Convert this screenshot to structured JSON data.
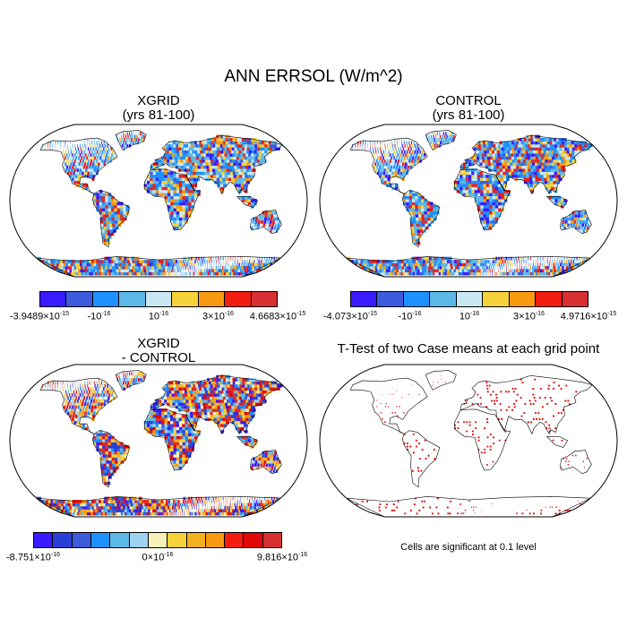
{
  "title": "ANN ERRSOL (W/m^2)",
  "panels": [
    {
      "title": "XGRID",
      "subtitle": "(yrs 81-100)"
    },
    {
      "title": "CONTROL",
      "subtitle": "(yrs 81-100)"
    },
    {
      "title": "XGRID",
      "subtitle": "- CONTROL"
    },
    {
      "title": "T-Test of two Case means at each grid point"
    }
  ],
  "colorbars": [
    {
      "colors": [
        "#3a1aff",
        "#3b5bdc",
        "#1e90ff",
        "#5cb8e8",
        "#c8e8f4",
        "#f5d23a",
        "#f79a10",
        "#f21c10",
        "#d63030"
      ],
      "labels": [
        {
          "mantissa": "-3.9489×10",
          "exp": "-15"
        },
        {
          "mantissa": "-10",
          "exp": "-16"
        },
        {
          "mantissa": "10",
          "exp": "-16"
        },
        {
          "mantissa": "3×10",
          "exp": "-16"
        },
        {
          "mantissa": "4.6683×10",
          "exp": "-15"
        }
      ]
    },
    {
      "colors": [
        "#3a1aff",
        "#3b5bdc",
        "#1e90ff",
        "#5cb8e8",
        "#c8e8f4",
        "#f5d23a",
        "#f79a10",
        "#f21c10",
        "#d63030"
      ],
      "labels": [
        {
          "mantissa": "-4.073×10",
          "exp": "-15"
        },
        {
          "mantissa": "-10",
          "exp": "-16"
        },
        {
          "mantissa": "10",
          "exp": "-16"
        },
        {
          "mantissa": "3×10",
          "exp": "-16"
        },
        {
          "mantissa": "4.9716×10",
          "exp": "-15"
        }
      ]
    },
    {
      "colors": [
        "#3a1aff",
        "#2a3fd8",
        "#3b5bdc",
        "#1e90ff",
        "#5cb8e8",
        "#9fd3ef",
        "#f6f1b8",
        "#f5d23a",
        "#f5b020",
        "#f79a10",
        "#f21c10",
        "#e00808",
        "#d63030"
      ],
      "labels": [
        {
          "mantissa": "-8.751×10",
          "exp": "-16"
        },
        {
          "mantissa": "0×10",
          "exp": "-16"
        },
        {
          "mantissa": "9.816×10",
          "exp": "-16"
        }
      ]
    }
  ],
  "note": "Cells are significant at 0.1 level"
}
